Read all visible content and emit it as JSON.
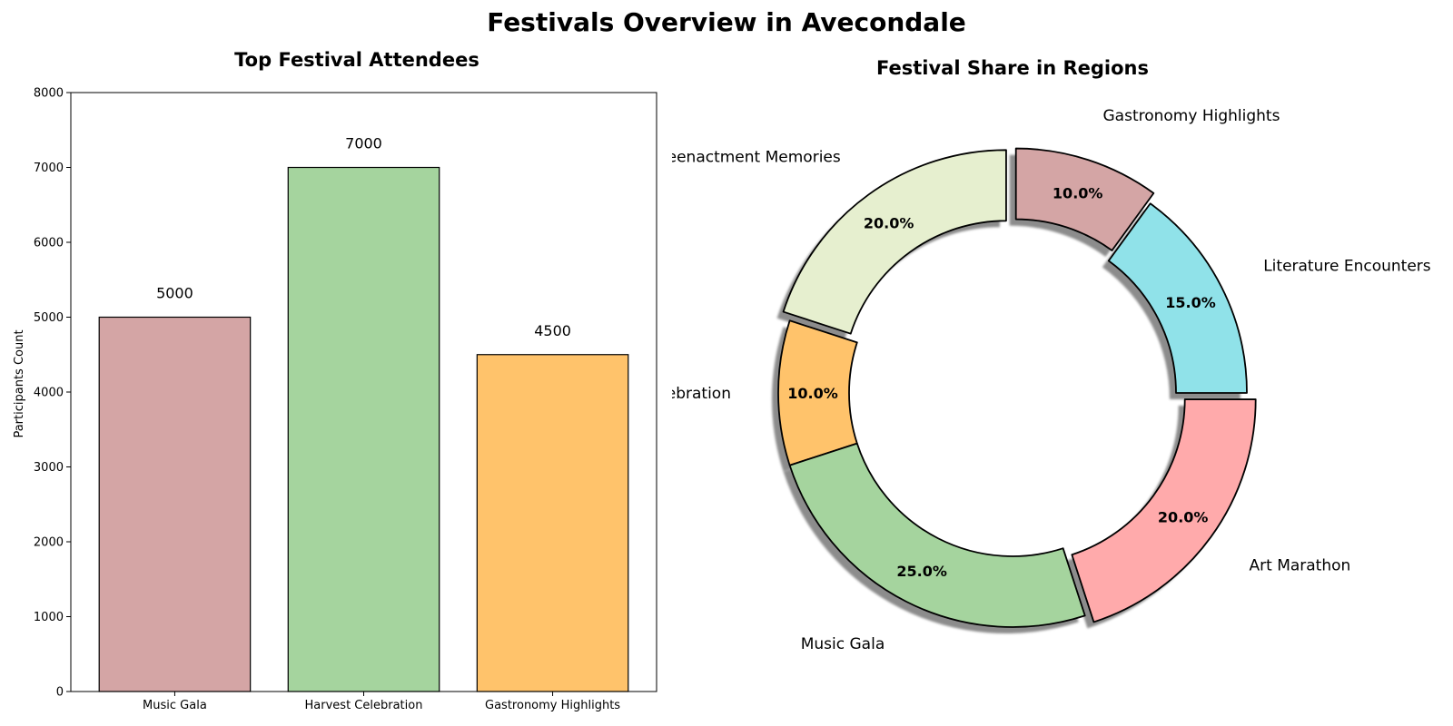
{
  "figure": {
    "title": "Festivals Overview in Avecondale"
  },
  "chart_data": [
    {
      "type": "bar",
      "title": "Top Festival Attendees",
      "xlabel": "",
      "ylabel": "Participants Count",
      "categories": [
        "Music Gala",
        "Harvest Celebration",
        "Gastronomy Highlights"
      ],
      "values": [
        5000,
        7000,
        4500
      ],
      "value_labels": [
        "5000",
        "7000",
        "4500"
      ],
      "colors": [
        "#d4a5a5",
        "#a5d49e",
        "#ffc36b"
      ],
      "ylim": [
        0,
        8000
      ],
      "yticks": [
        0,
        1000,
        2000,
        3000,
        4000,
        5000,
        6000,
        7000,
        8000
      ],
      "ytick_labels": [
        "0",
        "1000",
        "2000",
        "3000",
        "4000",
        "5000",
        "6000",
        "7000",
        "8000"
      ],
      "grid": false
    },
    {
      "type": "pie",
      "style": "donut",
      "title": "Festival Share in Regions",
      "start_angle_deg": 90,
      "direction": "counterclockwise",
      "shadow": true,
      "slices": [
        {
          "label": "Reenactment Memories",
          "value": 20,
          "pct_label": "20.0%",
          "color": "#e6efcf",
          "exploded": true
        },
        {
          "label": "Harvest Celebration",
          "value": 10,
          "pct_label": "10.0%",
          "color": "#ffc36b",
          "exploded": false
        },
        {
          "label": "Music Gala",
          "value": 25,
          "pct_label": "25.0%",
          "color": "#a5d49e",
          "exploded": false
        },
        {
          "label": "Art Marathon",
          "value": 20,
          "pct_label": "20.0%",
          "color": "#ffaaab",
          "exploded": true
        },
        {
          "label": "Literature Encounters",
          "value": 15,
          "pct_label": "15.0%",
          "color": "#90e2e9",
          "exploded": false
        },
        {
          "label": "Gastronomy Highlights",
          "value": 10,
          "pct_label": "10.0%",
          "color": "#d4a5a5",
          "exploded": true
        }
      ]
    }
  ]
}
